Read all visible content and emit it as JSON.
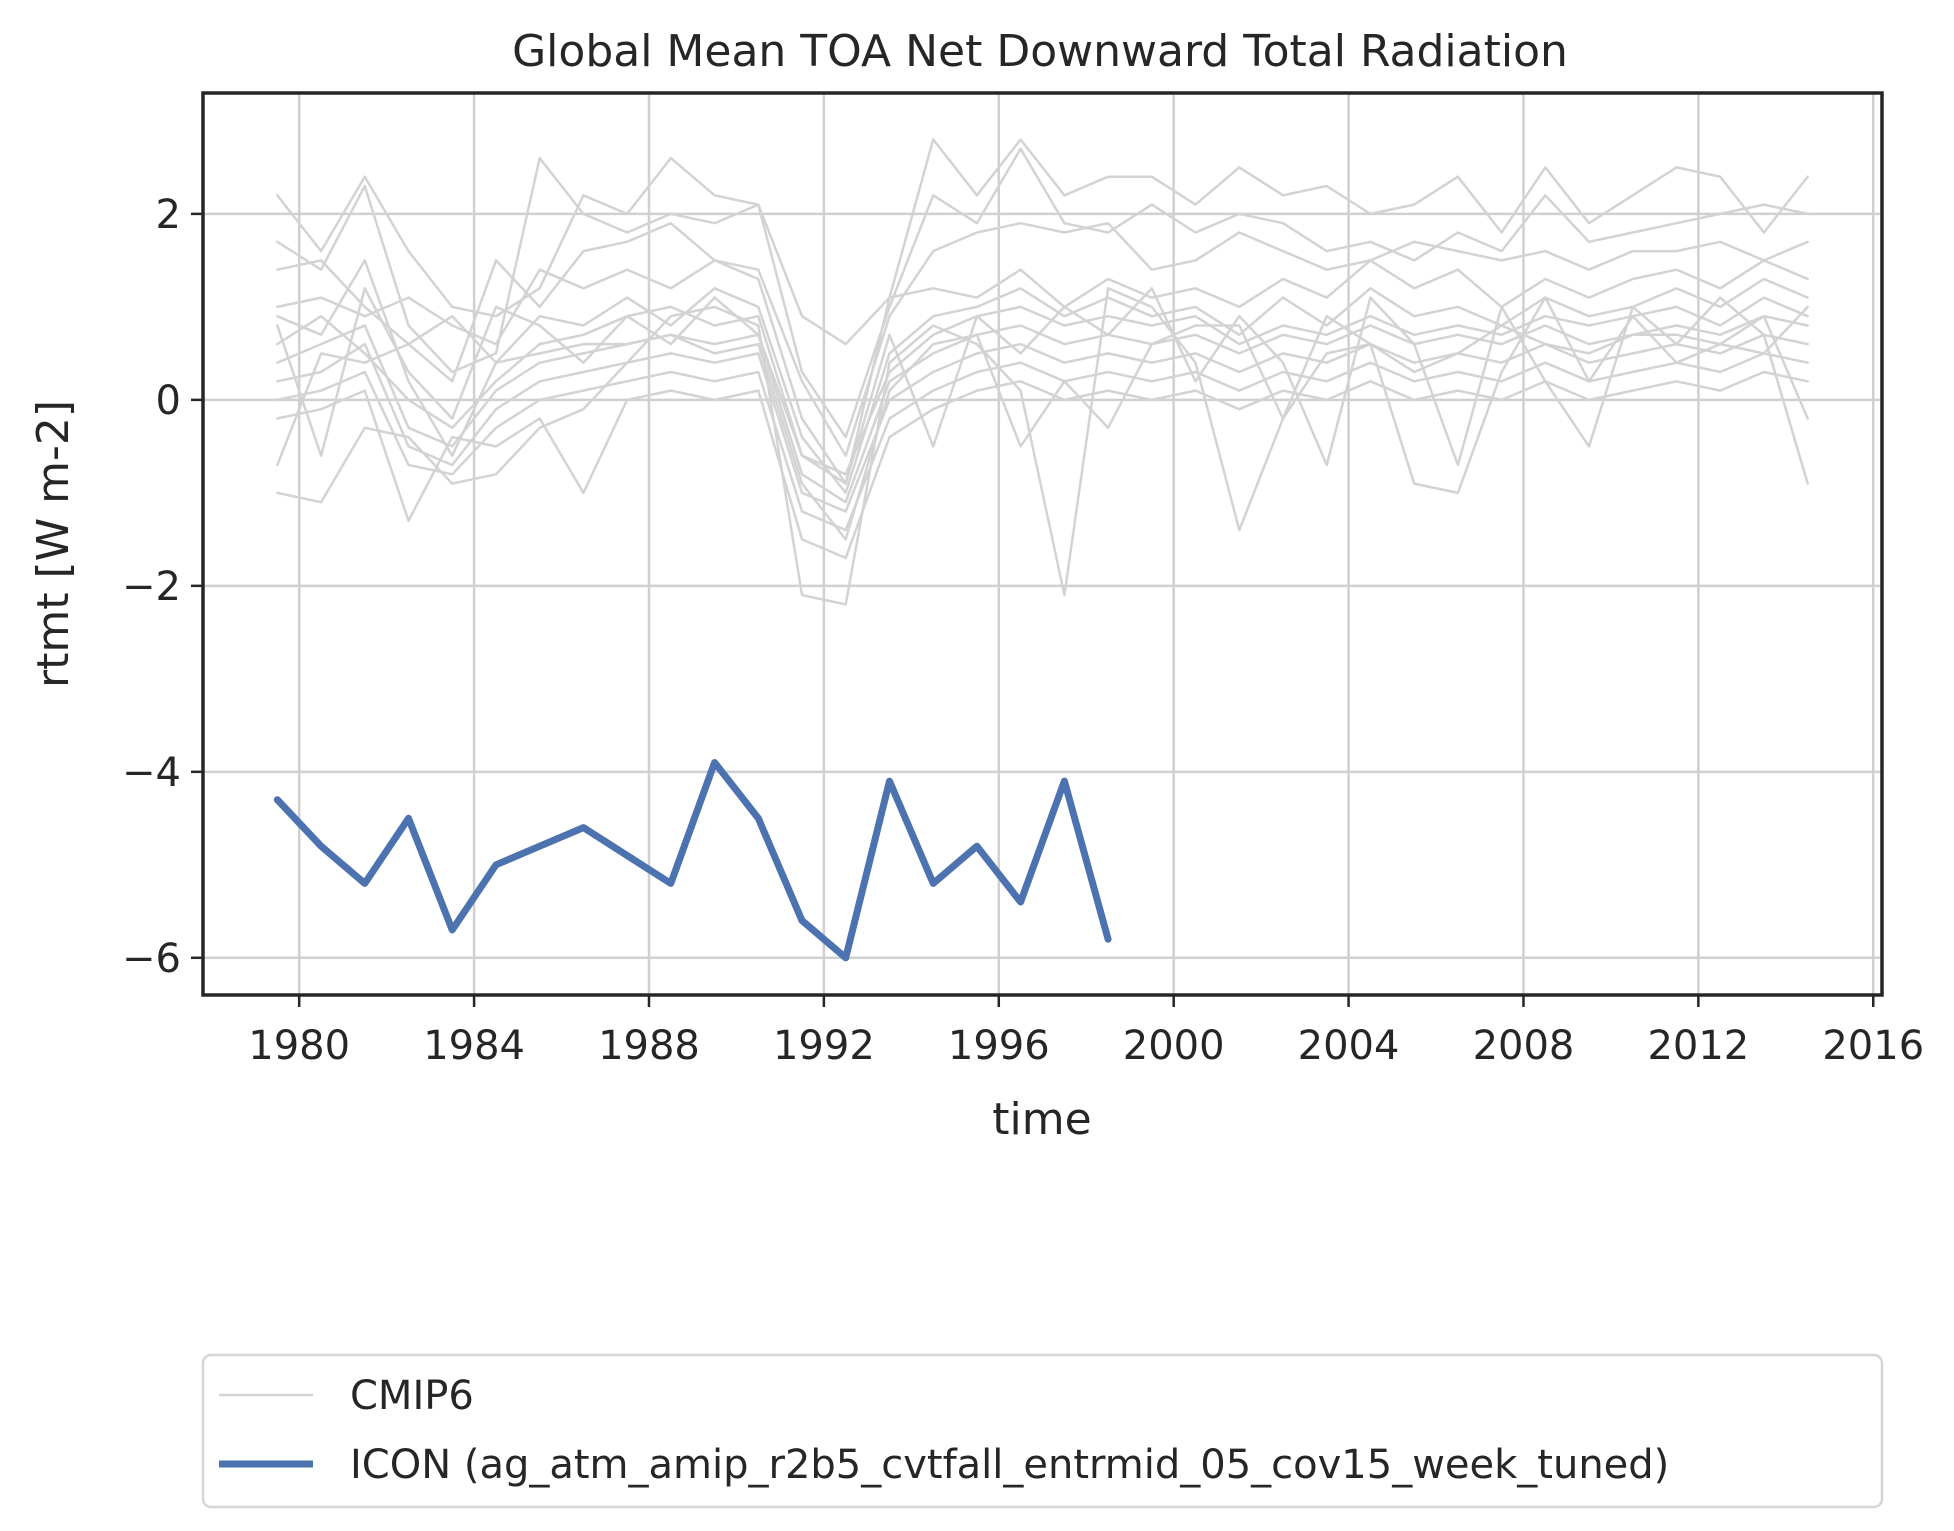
{
  "chart_data": {
    "type": "line",
    "title": "Global Mean TOA Net Downward Total Radiation",
    "xlabel": "time",
    "ylabel": "rtmt [W m-2]",
    "xlim": [
      1977.8,
      2016.2
    ],
    "ylim": [
      -6.4,
      3.3
    ],
    "xticks": [
      1980,
      1984,
      1988,
      1992,
      1996,
      2000,
      2004,
      2008,
      2012,
      2016
    ],
    "yticks": [
      -6,
      -4,
      -2,
      0,
      2
    ],
    "grid": true,
    "legend_position": "below",
    "colors": {
      "cmip6": "#d3d3d3",
      "icon": "#4c72b0",
      "grid": "#d0d0d0",
      "axes": "#262626"
    },
    "series": [
      {
        "name": "CMIP6",
        "group": "cmip6",
        "x": [
          1979.5,
          1980.5,
          1981.5,
          1982.5,
          1983.5,
          1984.5,
          1985.5,
          1986.5,
          1987.5,
          1988.5,
          1989.5,
          1990.5,
          1991.5,
          1992.5,
          1993.5,
          1994.5,
          1995.5,
          1996.5,
          1997.5,
          1998.5,
          1999.5,
          2000.5,
          2001.5,
          2002.5,
          2003.5,
          2004.5,
          2005.5,
          2006.5,
          2007.5,
          2008.5,
          2009.5,
          2010.5,
          2011.5,
          2012.5,
          2013.5,
          2014.5
        ],
        "values": [
          2.2,
          1.6,
          2.4,
          1.6,
          1.0,
          0.9,
          1.2,
          2.2,
          2.0,
          2.6,
          2.2,
          2.1,
          0.9,
          0.6,
          1.1,
          2.8,
          2.2,
          2.8,
          2.2,
          2.4,
          2.4,
          2.1,
          2.5,
          2.2,
          2.3,
          2.0,
          2.1,
          2.4,
          1.8,
          2.5,
          1.9,
          2.2,
          2.5,
          2.4,
          1.8,
          2.4
        ]
      },
      {
        "name": "",
        "group": "cmip6",
        "x": [
          1979.5,
          1980.5,
          1981.5,
          1982.5,
          1983.5,
          1984.5,
          1985.5,
          1986.5,
          1987.5,
          1988.5,
          1989.5,
          1990.5,
          1991.5,
          1992.5,
          1993.5,
          1994.5,
          1995.5,
          1996.5,
          1997.5,
          1998.5,
          1999.5,
          2000.5,
          2001.5,
          2002.5,
          2003.5,
          2004.5,
          2005.5,
          2006.5,
          2007.5,
          2008.5,
          2009.5,
          2010.5,
          2011.5,
          2012.5,
          2013.5,
          2014.5
        ],
        "values": [
          1.7,
          1.4,
          2.3,
          0.8,
          0.3,
          0.5,
          2.6,
          2.0,
          1.8,
          2.0,
          1.9,
          2.1,
          0.3,
          -0.4,
          1.0,
          2.2,
          1.9,
          2.7,
          1.9,
          1.8,
          2.1,
          1.8,
          2.0,
          1.9,
          1.6,
          1.7,
          1.5,
          1.8,
          1.6,
          2.2,
          1.7,
          1.8,
          1.9,
          2.0,
          2.1,
          2.0
        ]
      },
      {
        "name": "",
        "group": "cmip6",
        "x": [
          1979.5,
          1980.5,
          1981.5,
          1982.5,
          1983.5,
          1984.5,
          1985.5,
          1986.5,
          1987.5,
          1988.5,
          1989.5,
          1990.5,
          1991.5,
          1992.5,
          1993.5,
          1994.5,
          1995.5,
          1996.5,
          1997.5,
          1998.5,
          1999.5,
          2000.5,
          2001.5,
          2002.5,
          2003.5,
          2004.5,
          2005.5,
          2006.5,
          2007.5,
          2008.5,
          2009.5,
          2010.5,
          2011.5,
          2012.5,
          2013.5,
          2014.5
        ],
        "values": [
          1.4,
          1.5,
          1.0,
          0.6,
          0.2,
          1.5,
          1.0,
          1.6,
          1.7,
          1.9,
          1.5,
          1.4,
          0.2,
          -0.6,
          0.9,
          1.6,
          1.8,
          1.9,
          1.8,
          1.9,
          1.4,
          1.5,
          1.8,
          1.6,
          1.4,
          1.5,
          1.7,
          1.6,
          1.5,
          1.6,
          1.4,
          1.6,
          1.6,
          1.7,
          1.5,
          1.7
        ]
      },
      {
        "name": "",
        "group": "cmip6",
        "x": [
          1979.5,
          1980.5,
          1981.5,
          1982.5,
          1983.5,
          1984.5,
          1985.5,
          1986.5,
          1987.5,
          1988.5,
          1989.5,
          1990.5,
          1991.5,
          1992.5,
          1993.5,
          1994.5,
          1995.5,
          1996.5,
          1997.5,
          1998.5,
          1999.5,
          2000.5,
          2001.5,
          2002.5,
          2003.5,
          2004.5,
          2005.5,
          2006.5,
          2007.5,
          2008.5,
          2009.5,
          2010.5,
          2011.5,
          2012.5,
          2013.5,
          2014.5
        ],
        "values": [
          1.0,
          1.1,
          0.9,
          1.1,
          0.8,
          0.6,
          1.4,
          1.2,
          1.4,
          1.2,
          1.5,
          1.3,
          -0.2,
          -0.9,
          1.1,
          1.2,
          1.1,
          1.4,
          1.0,
          1.3,
          1.1,
          1.2,
          1.0,
          1.3,
          1.1,
          1.5,
          1.2,
          1.4,
          1.0,
          1.3,
          1.1,
          1.3,
          1.4,
          1.2,
          1.5,
          1.3
        ]
      },
      {
        "name": "",
        "group": "cmip6",
        "x": [
          1979.5,
          1980.5,
          1981.5,
          1982.5,
          1983.5,
          1984.5,
          1985.5,
          1986.5,
          1987.5,
          1988.5,
          1989.5,
          1990.5,
          1991.5,
          1992.5,
          1993.5,
          1994.5,
          1995.5,
          1996.5,
          1997.5,
          1998.5,
          1999.5,
          2000.5,
          2001.5,
          2002.5,
          2003.5,
          2004.5,
          2005.5,
          2006.5,
          2007.5,
          2008.5,
          2009.5,
          2010.5,
          2011.5,
          2012.5,
          2013.5,
          2014.5
        ],
        "values": [
          0.9,
          0.7,
          1.5,
          0.2,
          -0.6,
          0.4,
          0.9,
          0.8,
          1.1,
          0.8,
          1.2,
          1.0,
          -0.4,
          -1.0,
          0.5,
          0.9,
          1.0,
          1.2,
          0.9,
          1.1,
          0.9,
          1.0,
          0.7,
          1.1,
          0.8,
          1.2,
          0.9,
          1.0,
          0.8,
          1.1,
          0.9,
          1.0,
          1.2,
          1.0,
          1.3,
          1.1
        ]
      },
      {
        "name": "",
        "group": "cmip6",
        "x": [
          1979.5,
          1980.5,
          1981.5,
          1982.5,
          1983.5,
          1984.5,
          1985.5,
          1986.5,
          1987.5,
          1988.5,
          1989.5,
          1990.5,
          1991.5,
          1992.5,
          1993.5,
          1994.5,
          1995.5,
          1996.5,
          1997.5,
          1998.5,
          1999.5,
          2000.5,
          2001.5,
          2002.5,
          2003.5,
          2004.5,
          2005.5,
          2006.5,
          2007.5,
          2008.5,
          2009.5,
          2010.5,
          2011.5,
          2012.5,
          2013.5,
          2014.5
        ],
        "values": [
          0.6,
          0.9,
          0.5,
          0.0,
          -0.3,
          0.2,
          0.6,
          0.7,
          0.9,
          1.0,
          0.8,
          0.9,
          -0.6,
          -0.8,
          0.3,
          0.7,
          0.9,
          1.0,
          0.8,
          0.9,
          0.8,
          0.9,
          0.6,
          0.8,
          0.7,
          0.9,
          0.7,
          0.8,
          0.7,
          0.9,
          0.8,
          0.9,
          1.0,
          0.8,
          1.1,
          0.9
        ]
      },
      {
        "name": "",
        "group": "cmip6",
        "x": [
          1979.5,
          1980.5,
          1981.5,
          1982.5,
          1983.5,
          1984.5,
          1985.5,
          1986.5,
          1987.5,
          1988.5,
          1989.5,
          1990.5,
          1991.5,
          1992.5,
          1993.5,
          1994.5,
          1995.5,
          1996.5,
          1997.5,
          1998.5,
          1999.5,
          2000.5,
          2001.5,
          2002.5,
          2003.5,
          2004.5,
          2005.5,
          2006.5,
          2007.5,
          2008.5,
          2009.5,
          2010.5,
          2011.5,
          2012.5,
          2013.5,
          2014.5
        ],
        "values": [
          0.4,
          0.6,
          0.8,
          -0.3,
          -0.5,
          0.1,
          0.4,
          0.5,
          0.6,
          0.7,
          0.6,
          0.7,
          -0.8,
          -1.1,
          0.2,
          0.5,
          0.7,
          0.8,
          0.6,
          0.7,
          0.6,
          0.7,
          0.5,
          0.7,
          0.6,
          0.8,
          0.6,
          0.7,
          0.6,
          0.8,
          0.6,
          0.7,
          0.8,
          0.7,
          0.9,
          0.8
        ]
      },
      {
        "name": "",
        "group": "cmip6",
        "x": [
          1979.5,
          1980.5,
          1981.5,
          1982.5,
          1983.5,
          1984.5,
          1985.5,
          1986.5,
          1987.5,
          1988.5,
          1989.5,
          1990.5,
          1991.5,
          1992.5,
          1993.5,
          1994.5,
          1995.5,
          1996.5,
          1997.5,
          1998.5,
          1999.5,
          2000.5,
          2001.5,
          2002.5,
          2003.5,
          2004.5,
          2005.5,
          2006.5,
          2007.5,
          2008.5,
          2009.5,
          2010.5,
          2011.5,
          2012.5,
          2013.5,
          2014.5
        ],
        "values": [
          0.2,
          0.3,
          0.6,
          -0.5,
          -0.7,
          -0.1,
          0.2,
          0.3,
          0.4,
          0.5,
          0.4,
          0.5,
          -1.0,
          -1.2,
          0.0,
          0.3,
          0.5,
          0.6,
          0.4,
          0.5,
          0.4,
          0.5,
          0.3,
          0.5,
          0.4,
          0.6,
          0.4,
          0.5,
          0.4,
          0.6,
          0.4,
          0.5,
          0.6,
          0.5,
          0.7,
          0.6
        ]
      },
      {
        "name": "",
        "group": "cmip6",
        "x": [
          1979.5,
          1980.5,
          1981.5,
          1982.5,
          1983.5,
          1984.5,
          1985.5,
          1986.5,
          1987.5,
          1988.5,
          1989.5,
          1990.5,
          1991.5,
          1992.5,
          1993.5,
          1994.5,
          1995.5,
          1996.5,
          1997.5,
          1998.5,
          1999.5,
          2000.5,
          2001.5,
          2002.5,
          2003.5,
          2004.5,
          2005.5,
          2006.5,
          2007.5,
          2008.5,
          2009.5,
          2010.5,
          2011.5,
          2012.5,
          2013.5,
          2014.5
        ],
        "values": [
          0.0,
          0.1,
          0.3,
          -0.7,
          -0.8,
          -0.3,
          0.0,
          0.1,
          0.2,
          0.3,
          0.2,
          0.3,
          -1.2,
          -1.4,
          -0.2,
          0.1,
          0.3,
          0.4,
          0.2,
          0.3,
          0.2,
          0.3,
          0.1,
          0.3,
          0.2,
          0.4,
          0.2,
          0.3,
          0.2,
          0.4,
          0.2,
          0.3,
          0.4,
          0.3,
          0.5,
          0.4
        ]
      },
      {
        "name": "",
        "group": "cmip6",
        "x": [
          1979.5,
          1980.5,
          1981.5,
          1982.5,
          1983.5,
          1984.5,
          1985.5,
          1986.5,
          1987.5,
          1988.5,
          1989.5,
          1990.5,
          1991.5,
          1992.5,
          1993.5,
          1994.5,
          1995.5,
          1996.5,
          1997.5,
          1998.5,
          1999.5,
          2000.5,
          2001.5,
          2002.5,
          2003.5,
          2004.5,
          2005.5,
          2006.5,
          2007.5,
          2008.5,
          2009.5,
          2010.5,
          2011.5,
          2012.5,
          2013.5,
          2014.5
        ],
        "values": [
          -0.2,
          -0.1,
          0.1,
          -1.3,
          -0.4,
          -0.5,
          -0.2,
          -1.0,
          0.0,
          0.1,
          0.0,
          0.1,
          -1.5,
          -1.7,
          -0.4,
          -0.1,
          0.1,
          0.2,
          0.0,
          0.1,
          0.0,
          0.1,
          -0.1,
          0.1,
          0.0,
          0.2,
          0.0,
          0.1,
          0.0,
          0.2,
          0.0,
          0.1,
          0.2,
          0.1,
          0.3,
          0.2
        ]
      },
      {
        "name": "",
        "group": "cmip6",
        "x": [
          1979.5,
          1980.5,
          1981.5,
          1982.5,
          1983.5,
          1984.5,
          1985.5,
          1986.5,
          1987.5,
          1988.5,
          1989.5,
          1990.5,
          1991.5,
          1992.5,
          1993.5,
          1994.5,
          1995.5,
          1996.5,
          1997.5,
          1998.5,
          1999.5,
          2000.5,
          2001.5,
          2002.5,
          2003.5,
          2004.5,
          2005.5,
          2006.5,
          2007.5,
          2008.5,
          2009.5,
          2010.5,
          2011.5,
          2012.5,
          2013.5,
          2014.5
        ],
        "values": [
          -0.7,
          0.5,
          0.4,
          0.6,
          0.9,
          0.4,
          0.5,
          0.6,
          0.6,
          0.7,
          0.5,
          0.6,
          -0.9,
          -1.5,
          0.1,
          0.6,
          0.7,
          -0.5,
          0.2,
          -0.3,
          0.6,
          0.8,
          0.8,
          -0.2,
          0.5,
          0.6,
          0.3,
          0.5,
          0.8,
          0.6,
          0.5,
          0.7,
          0.7,
          0.6,
          0.9,
          -0.2
        ]
      },
      {
        "name": "",
        "group": "cmip6",
        "x": [
          1979.5,
          1980.5,
          1981.5,
          1982.5,
          1983.5,
          1984.5,
          1985.5,
          1986.5,
          1987.5,
          1988.5,
          1989.5,
          1990.5,
          1991.5,
          1992.5,
          1993.5,
          1994.5,
          1995.5,
          1996.5,
          1997.5,
          1998.5,
          1999.5,
          2000.5,
          2001.5,
          2002.5,
          2003.5,
          2004.5,
          2005.5,
          2006.5,
          2007.5,
          2008.5,
          2009.5,
          2010.5,
          2011.5,
          2012.5,
          2013.5,
          2014.5
        ],
        "values": [
          -1.0,
          -1.1,
          -0.3,
          -0.4,
          -0.9,
          -0.8,
          -0.3,
          -0.1,
          0.4,
          0.9,
          1.0,
          0.8,
          -2.1,
          -2.2,
          0.4,
          0.8,
          0.6,
          0.1,
          -2.1,
          1.2,
          1.0,
          0.4,
          -1.4,
          -0.2,
          0.9,
          0.6,
          -0.9,
          -1.0,
          0.3,
          1.1,
          0.2,
          0.9,
          0.4,
          0.6,
          0.5,
          1.0
        ]
      },
      {
        "name": "",
        "group": "cmip6",
        "x": [
          1979.5,
          1980.5,
          1981.5,
          1982.5,
          1983.5,
          1984.5,
          1985.5,
          1986.5,
          1987.5,
          1988.5,
          1989.5,
          1990.5,
          1991.5,
          1992.5,
          1993.5,
          1994.5,
          1995.5,
          1996.5,
          1997.5,
          1998.5,
          1999.5,
          2000.5,
          2001.5,
          2002.5,
          2003.5,
          2004.5,
          2005.5,
          2006.5,
          2007.5,
          2008.5,
          2009.5,
          2010.5,
          2011.5,
          2012.5,
          2013.5,
          2014.5
        ],
        "values": [
          0.8,
          -0.6,
          1.2,
          0.3,
          -0.2,
          1.0,
          0.8,
          0.4,
          0.9,
          0.6,
          1.1,
          0.7,
          -0.6,
          -0.9,
          0.7,
          -0.5,
          0.9,
          0.5,
          1.0,
          0.7,
          1.2,
          0.2,
          0.9,
          0.4,
          -0.7,
          1.1,
          0.6,
          -0.7,
          1.0,
          0.2,
          -0.5,
          1.0,
          0.6,
          1.1,
          0.7,
          -0.9
        ]
      },
      {
        "name": "ICON (ag_atm_amip_r2b5_cvtfall_entrmid_05_cov15_week_tuned)",
        "group": "icon",
        "x": [
          1979.5,
          1980.5,
          1981.5,
          1982.5,
          1983.5,
          1984.5,
          1985.5,
          1986.5,
          1987.5,
          1988.5,
          1989.5,
          1990.5,
          1991.5,
          1992.5,
          1993.5,
          1994.5,
          1995.5,
          1996.5,
          1997.5,
          1998.5
        ],
        "values": [
          -4.3,
          -4.8,
          -5.2,
          -4.5,
          -5.7,
          -5.0,
          -4.8,
          -4.6,
          -4.9,
          -5.2,
          -3.9,
          -4.5,
          -5.6,
          -6.0,
          -4.1,
          -5.2,
          -4.8,
          -5.4,
          -4.1,
          -5.8
        ]
      }
    ]
  }
}
